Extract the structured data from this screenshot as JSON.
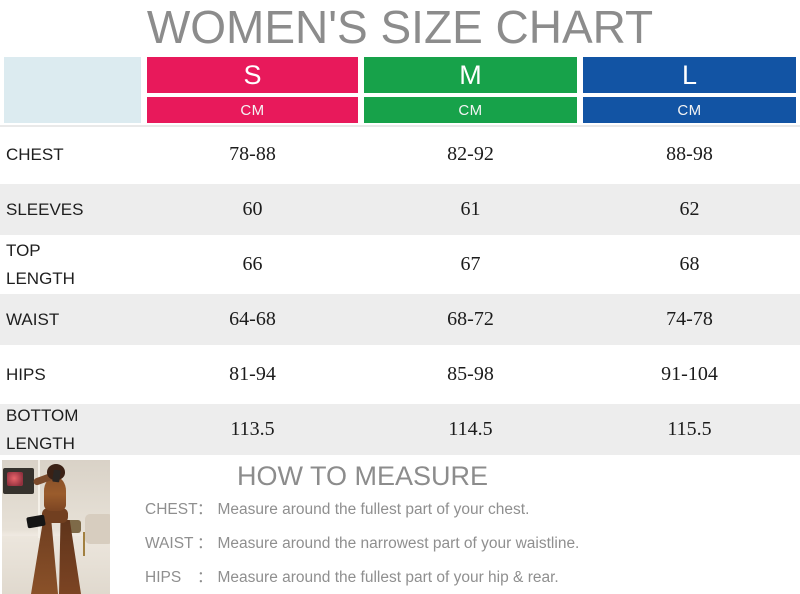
{
  "title": "WOMEN'S SIZE CHART",
  "chart_data": {
    "type": "table",
    "title": "WOMEN'S SIZE CHART",
    "unit": "CM",
    "header": {
      "corner_color": "#dcebf0",
      "sizes": [
        {
          "label": "S",
          "unit": "CM",
          "color": "#e8195b"
        },
        {
          "label": "M",
          "unit": "CM",
          "color": "#17a24a"
        },
        {
          "label": "L",
          "unit": "CM",
          "color": "#1254a4"
        }
      ]
    },
    "rows": [
      {
        "label": "CHEST",
        "values": [
          "78-88",
          "82-92",
          "88-98"
        ]
      },
      {
        "label": "SLEEVES",
        "values": [
          "60",
          "61",
          "62"
        ]
      },
      {
        "label": "TOP LENGTH",
        "values": [
          "66",
          "67",
          "68"
        ]
      },
      {
        "label": "WAIST",
        "values": [
          "64-68",
          "68-72",
          "74-78"
        ]
      },
      {
        "label": "HIPS",
        "values": [
          "81-94",
          "85-98",
          "91-104"
        ]
      },
      {
        "label": "BOTTOM LENGTH",
        "values": [
          "113.5",
          "114.5",
          "115.5"
        ]
      }
    ]
  },
  "measure": {
    "heading": "HOW TO MEASURE",
    "lines": [
      {
        "label": "CHEST",
        "colon": "：",
        "text": "Measure around the fullest part of your chest."
      },
      {
        "label": "WAIST",
        "colon": "：",
        "text": "Measure around the narrowest part of your waistline."
      },
      {
        "label": "HIPS",
        "colon": "：",
        "text": "Measure around the fullest part of your hip & rear."
      }
    ]
  },
  "photo": {
    "description": "model wearing brown sheer flared jumpsuit, mirror selfie"
  }
}
